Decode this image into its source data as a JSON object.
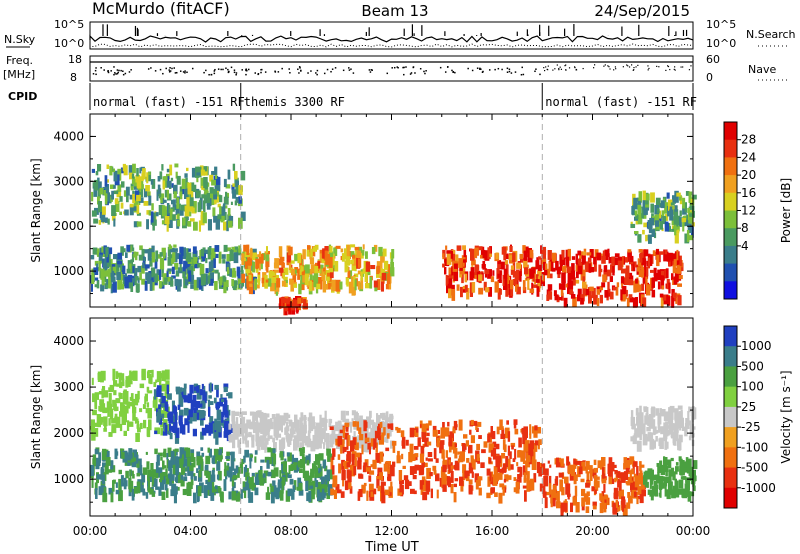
{
  "header": {
    "station": "McMurdo (fitACF)",
    "beam": "Beam 13",
    "date": "24/Sep/2015"
  },
  "top_panel": {
    "nsky_label": "N.Sky",
    "nsearch_label": "N.Search",
    "freq_label": "Freq.",
    "freq_unit": "[MHz]",
    "nave_label": "Nave",
    "cpid_label": "CPID",
    "nsky_ticks": [
      "10^5",
      "10^0"
    ],
    "nsearch_ticks": [
      "10^5",
      "10^0"
    ],
    "freq_ticks": [
      "18",
      "8"
    ],
    "nave_ticks": [
      "60",
      "0"
    ],
    "cpid_segments": [
      {
        "label": "normal (fast) -151 RF",
        "start_hr": 0,
        "end_hr": 6
      },
      {
        "label": "themis 3300 RF",
        "start_hr": 6,
        "end_hr": 18
      },
      {
        "label": "normal (fast) -151 RF",
        "start_hr": 18,
        "end_hr": 24
      }
    ]
  },
  "x_axis": {
    "label": "Time UT",
    "ticks": [
      "00:00",
      "04:00",
      "08:00",
      "12:00",
      "16:00",
      "20:00",
      "00:00"
    ]
  },
  "chart_data": [
    {
      "type": "heatmap",
      "title": "",
      "xlabel": "",
      "ylabel": "Slant Range [km]",
      "xlim_hours": [
        0,
        24
      ],
      "ylim_km": [
        200,
        4500
      ],
      "y_ticks": [
        "1000",
        "2000",
        "3000",
        "4000"
      ],
      "colorbar": {
        "label": "Power [dB]",
        "ticks": [
          "28",
          "24",
          "20",
          "16",
          "12",
          "8",
          "4"
        ],
        "colors": [
          "#1010e0",
          "#2050b0",
          "#3a7d8a",
          "#4a9a60",
          "#7cbf3a",
          "#d8d020",
          "#f0a020",
          "#f07010",
          "#e83010",
          "#e00000"
        ]
      },
      "regions": [
        {
          "t0": 0.0,
          "t1": 6.0,
          "r0": 2100,
          "r1": 3400,
          "value": 12
        },
        {
          "t0": 0.0,
          "t1": 6.5,
          "r0": 700,
          "r1": 1600,
          "value": 10
        },
        {
          "t0": 6.0,
          "t1": 12.0,
          "r0": 700,
          "r1": 1600,
          "value": 20
        },
        {
          "t0": 7.5,
          "t1": 8.5,
          "r0": 250,
          "r1": 450,
          "value": 28
        },
        {
          "t0": 14.0,
          "t1": 18.0,
          "r0": 600,
          "r1": 1600,
          "value": 26
        },
        {
          "t0": 18.0,
          "t1": 23.5,
          "r0": 400,
          "r1": 1500,
          "value": 28
        },
        {
          "t0": 21.5,
          "t1": 24.0,
          "r0": 1800,
          "r1": 2800,
          "value": 12
        }
      ]
    },
    {
      "type": "heatmap",
      "title": "",
      "xlabel": "Time UT",
      "ylabel": "Slant Range [km]",
      "xlim_hours": [
        0,
        24
      ],
      "ylim_km": [
        200,
        4500
      ],
      "y_ticks": [
        "1000",
        "2000",
        "3000",
        "4000"
      ],
      "colorbar": {
        "label": "Velocity [m s⁻¹]",
        "ticks": [
          "1000",
          "500",
          "100",
          "25",
          "-25",
          "-100",
          "-500",
          "-1000"
        ],
        "colors": [
          "#2040c0",
          "#3a7d8a",
          "#4aa040",
          "#80d040",
          "#c8c8c8",
          "#f0a020",
          "#f07010",
          "#e83010",
          "#e00000"
        ]
      },
      "regions": [
        {
          "t0": 0.0,
          "t1": 3.0,
          "r0": 2000,
          "r1": 3400,
          "value": 30
        },
        {
          "t0": 2.5,
          "t1": 5.5,
          "r0": 2000,
          "r1": 3100,
          "value": 800
        },
        {
          "t0": 5.5,
          "t1": 12.0,
          "r0": 1800,
          "r1": 2500,
          "value": 0
        },
        {
          "t0": 0.0,
          "t1": 9.5,
          "r0": 700,
          "r1": 1700,
          "value": 300
        },
        {
          "t0": 9.5,
          "t1": 18.0,
          "r0": 700,
          "r1": 2300,
          "value": -300
        },
        {
          "t0": 18.0,
          "t1": 22.0,
          "r0": 400,
          "r1": 1500,
          "value": -300
        },
        {
          "t0": 22.0,
          "t1": 24.0,
          "r0": 700,
          "r1": 1500,
          "value": 100
        },
        {
          "t0": 21.5,
          "t1": 24.0,
          "r0": 1800,
          "r1": 2600,
          "value": 0
        }
      ]
    }
  ]
}
